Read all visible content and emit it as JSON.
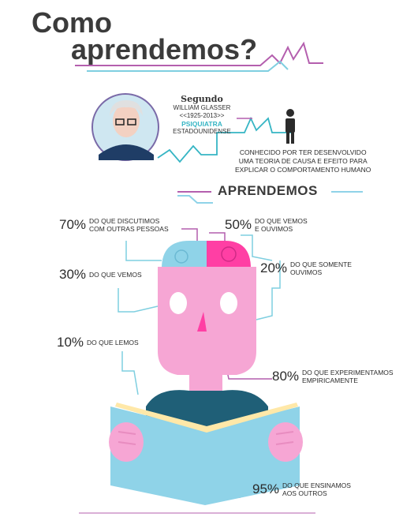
{
  "title": {
    "line1": "Como",
    "line2": "aprendemos?"
  },
  "author": {
    "segundo": "Segundo",
    "name": "WILLIAM GLASSER",
    "years": "<<1925-2013>>",
    "role": "PSIQUIATRA",
    "nationality": "ESTADOUNIDENSE"
  },
  "known_for": {
    "line1": "CONHECIDO POR TER DESENVOLVIDO",
    "line2": "UMA TEORIA DE CAUSA E EFEITO PARA",
    "line3": "EXPLICAR O COMPORTAMENTO HUMANO"
  },
  "heading": "APRENDEMOS",
  "stats": [
    {
      "pct": "70%",
      "l1": "DO QUE DISCUTIMOS",
      "l2": "COM OUTRAS PESSOAS"
    },
    {
      "pct": "50%",
      "l1": "DO QUE VEMOS",
      "l2": "E OUVIMOS"
    },
    {
      "pct": "30%",
      "l1": "DO QUE VEMOS",
      "l2": ""
    },
    {
      "pct": "20%",
      "l1": "DO QUE SOMENTE",
      "l2": "OUVIMOS"
    },
    {
      "pct": "10%",
      "l1": "DO QUE LEMOS",
      "l2": ""
    },
    {
      "pct": "80%",
      "l1": "DO QUE EXPERIMENTAMOS",
      "l2": "EMPIRICAMENTE"
    },
    {
      "pct": "95%",
      "l1": "DO QUE ENSINAMOS",
      "l2": "AOS OUTROS"
    }
  ],
  "colors": {
    "pink": "#f6a6d4",
    "blue": "#8fd3e8",
    "teal": "#36b5c4",
    "dark": "#2f4f6b"
  }
}
